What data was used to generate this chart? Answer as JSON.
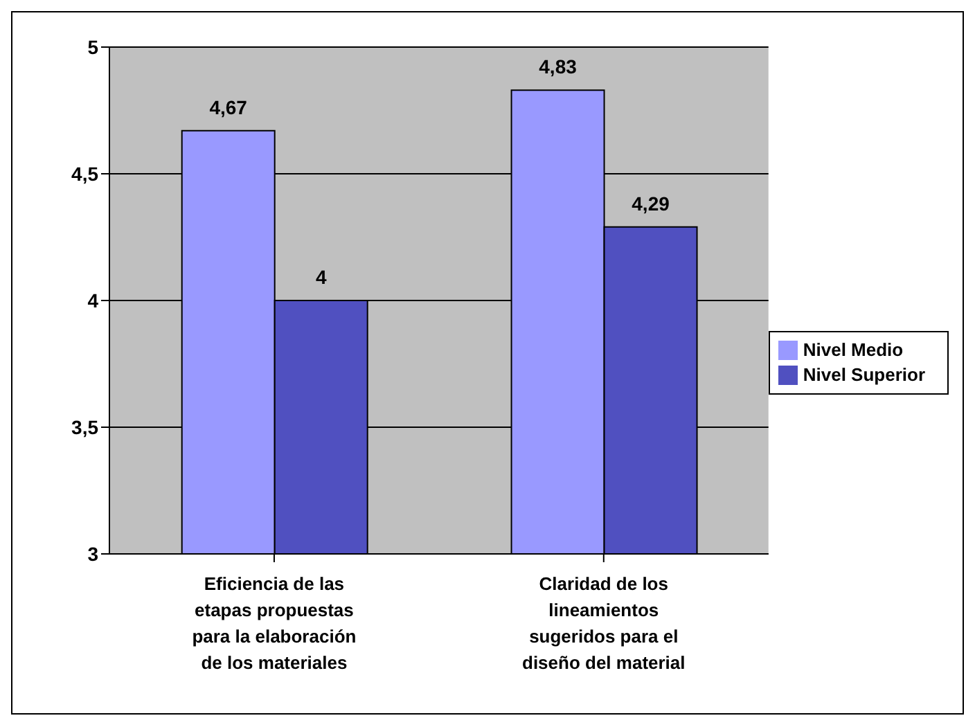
{
  "chart_data": {
    "type": "bar",
    "categories": [
      "Eficiencia de las etapas propuestas para la elaboración de los materiales",
      "Claridad de los lineamientos sugeridos para el diseño del material"
    ],
    "series": [
      {
        "name": "Nivel Medio",
        "color": "#9999ff",
        "values": [
          4.67,
          4.83
        ],
        "value_labels": [
          "4,67",
          "4,83"
        ]
      },
      {
        "name": "Nivel Superior",
        "color": "#5050c0",
        "values": [
          4,
          4.29
        ],
        "value_labels": [
          "4",
          "4,29"
        ]
      }
    ],
    "ylim": [
      3,
      5
    ],
    "yticks": [
      3,
      {
        "value": 3.5,
        "label": "3,5"
      },
      4,
      {
        "value": 4.5,
        "label": "4,5"
      },
      5
    ],
    "grid": "y",
    "legend": "right"
  }
}
